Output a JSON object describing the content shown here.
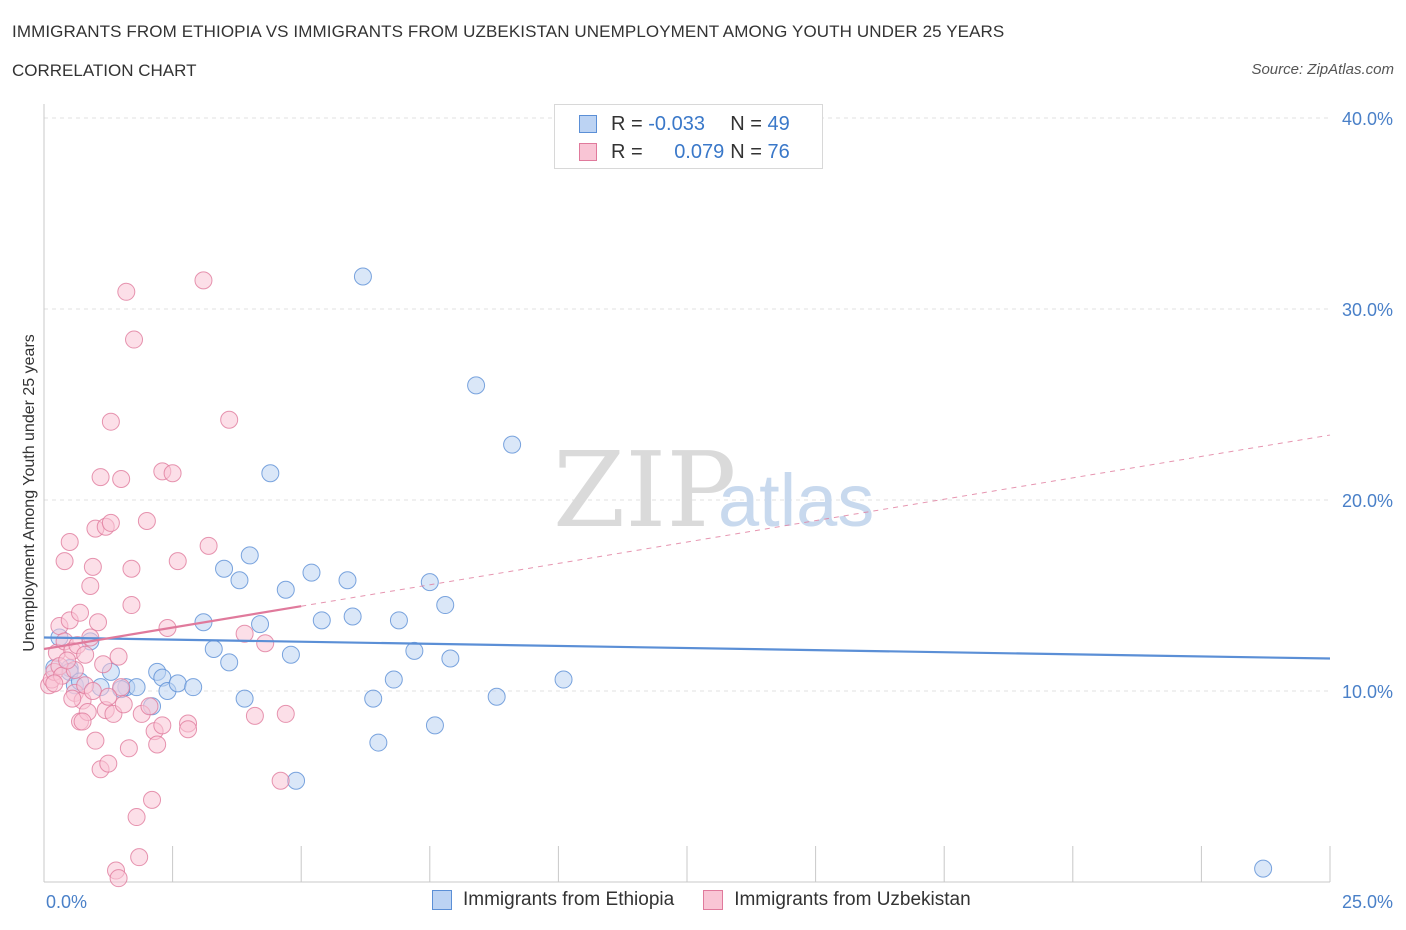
{
  "header": {
    "title": "IMMIGRANTS FROM ETHIOPIA VS IMMIGRANTS FROM UZBEKISTAN UNEMPLOYMENT AMONG YOUTH UNDER 25 YEARS",
    "subtitle": "CORRELATION CHART",
    "source": "Source: ZipAtlas.com"
  },
  "watermark": {
    "zip": "ZIP",
    "atlas": "atlas"
  },
  "legend": {
    "rows": [
      {
        "r_label": "R =",
        "r_value": "-0.033",
        "n_label": "N =",
        "n_value": "49",
        "color": "#5b8fd6",
        "fill": "#bcd3f3"
      },
      {
        "r_label": "R =",
        "r_value": "0.079",
        "n_label": "N =",
        "n_value": "76",
        "color": "#e07a9c",
        "fill": "#f9c5d5"
      }
    ]
  },
  "bottom_legend": [
    {
      "label": "Immigrants from Ethiopia",
      "color": "#5b8fd6",
      "fill": "#bcd3f3"
    },
    {
      "label": "Immigrants from Uzbekistan",
      "color": "#e07a9c",
      "fill": "#f9c5d5"
    }
  ],
  "chart_data": {
    "type": "scatter",
    "title": "IMMIGRANTS FROM ETHIOPIA VS IMMIGRANTS FROM UZBEKISTAN UNEMPLOYMENT AMONG YOUTH UNDER 25 YEARS",
    "xlabel": "",
    "ylabel": "Unemployment Among Youth under 25 years",
    "xlim": [
      0,
      25
    ],
    "ylim": [
      0,
      40
    ],
    "x_tick_labels": {
      "left": "0.0%",
      "right": "25.0%"
    },
    "y_ticks": [
      10,
      20,
      30,
      40
    ],
    "y_tick_labels": [
      "10.0%",
      "20.0%",
      "30.0%",
      "40.0%"
    ],
    "grid": true,
    "series": [
      {
        "name": "Immigrants from Ethiopia",
        "color": "#5b8fd6",
        "fill": "#bcd3f3",
        "trend": {
          "x1": 0.0,
          "y1": 12.8,
          "x2": 25.0,
          "y2": 11.7,
          "solid_to_x": 25.0
        },
        "points": [
          [
            0.3,
            12.8
          ],
          [
            0.5,
            11.2
          ],
          [
            0.5,
            11.0
          ],
          [
            0.6,
            10.3
          ],
          [
            0.7,
            10.5
          ],
          [
            0.9,
            12.6
          ],
          [
            1.1,
            10.2
          ],
          [
            1.3,
            11.0
          ],
          [
            1.6,
            10.2
          ],
          [
            1.8,
            10.2
          ],
          [
            2.1,
            9.2
          ],
          [
            2.2,
            11.0
          ],
          [
            2.3,
            10.7
          ],
          [
            2.4,
            10.0
          ],
          [
            2.6,
            10.4
          ],
          [
            2.9,
            10.2
          ],
          [
            3.1,
            13.6
          ],
          [
            3.3,
            12.2
          ],
          [
            3.5,
            16.4
          ],
          [
            3.6,
            11.5
          ],
          [
            3.8,
            15.8
          ],
          [
            3.9,
            9.6
          ],
          [
            4.0,
            17.1
          ],
          [
            4.2,
            13.5
          ],
          [
            4.4,
            21.4
          ],
          [
            4.7,
            15.3
          ],
          [
            4.8,
            11.9
          ],
          [
            4.9,
            5.3
          ],
          [
            5.2,
            16.2
          ],
          [
            5.4,
            13.7
          ],
          [
            5.9,
            15.8
          ],
          [
            6.0,
            13.9
          ],
          [
            6.2,
            31.7
          ],
          [
            6.4,
            9.6
          ],
          [
            6.5,
            7.3
          ],
          [
            6.8,
            10.6
          ],
          [
            6.9,
            13.7
          ],
          [
            7.2,
            12.1
          ],
          [
            7.5,
            15.7
          ],
          [
            7.6,
            8.2
          ],
          [
            7.8,
            14.5
          ],
          [
            7.9,
            11.7
          ],
          [
            8.4,
            26.0
          ],
          [
            8.8,
            9.7
          ],
          [
            9.1,
            22.9
          ],
          [
            10.1,
            10.6
          ],
          [
            23.7,
            0.7
          ],
          [
            0.2,
            11.2
          ],
          [
            1.5,
            10.1
          ]
        ]
      },
      {
        "name": "Immigrants from Uzbekistan",
        "color": "#e07a9c",
        "fill": "#f9c5d5",
        "trend": {
          "x1": 0.0,
          "y1": 12.2,
          "x2": 25.0,
          "y2": 23.4,
          "solid_to_x": 5.0
        },
        "points": [
          [
            0.1,
            10.3
          ],
          [
            0.15,
            10.6
          ],
          [
            0.2,
            11.0
          ],
          [
            0.25,
            12.0
          ],
          [
            0.3,
            11.3
          ],
          [
            0.3,
            13.4
          ],
          [
            0.35,
            10.8
          ],
          [
            0.4,
            12.6
          ],
          [
            0.4,
            16.8
          ],
          [
            0.5,
            17.8
          ],
          [
            0.5,
            13.7
          ],
          [
            0.55,
            12.1
          ],
          [
            0.6,
            11.1
          ],
          [
            0.6,
            9.9
          ],
          [
            0.65,
            12.4
          ],
          [
            0.7,
            8.4
          ],
          [
            0.7,
            14.1
          ],
          [
            0.75,
            9.5
          ],
          [
            0.8,
            10.3
          ],
          [
            0.8,
            11.9
          ],
          [
            0.85,
            8.9
          ],
          [
            0.9,
            12.8
          ],
          [
            0.9,
            15.5
          ],
          [
            0.95,
            16.5
          ],
          [
            1.0,
            18.5
          ],
          [
            1.0,
            7.4
          ],
          [
            1.05,
            13.6
          ],
          [
            1.1,
            21.2
          ],
          [
            1.1,
            5.9
          ],
          [
            1.15,
            11.4
          ],
          [
            1.2,
            18.6
          ],
          [
            1.2,
            9.0
          ],
          [
            1.25,
            6.2
          ],
          [
            1.3,
            18.8
          ],
          [
            1.3,
            24.1
          ],
          [
            1.35,
            8.8
          ],
          [
            1.4,
            0.6
          ],
          [
            1.45,
            0.2
          ],
          [
            1.5,
            21.1
          ],
          [
            1.5,
            10.2
          ],
          [
            1.55,
            9.3
          ],
          [
            1.6,
            30.9
          ],
          [
            1.65,
            7.0
          ],
          [
            1.7,
            16.4
          ],
          [
            1.7,
            14.5
          ],
          [
            1.75,
            28.4
          ],
          [
            1.8,
            3.4
          ],
          [
            1.85,
            1.3
          ],
          [
            1.9,
            8.8
          ],
          [
            2.0,
            18.9
          ],
          [
            2.1,
            4.3
          ],
          [
            2.15,
            7.9
          ],
          [
            2.2,
            7.2
          ],
          [
            2.3,
            8.2
          ],
          [
            2.3,
            21.5
          ],
          [
            2.4,
            13.3
          ],
          [
            2.5,
            21.4
          ],
          [
            2.6,
            16.8
          ],
          [
            2.8,
            8.3
          ],
          [
            2.8,
            8.0
          ],
          [
            3.1,
            31.5
          ],
          [
            3.2,
            17.6
          ],
          [
            3.6,
            24.2
          ],
          [
            3.9,
            13.0
          ],
          [
            4.1,
            8.7
          ],
          [
            4.3,
            12.5
          ],
          [
            4.6,
            5.3
          ],
          [
            4.7,
            8.8
          ],
          [
            0.2,
            10.4
          ],
          [
            0.45,
            11.6
          ],
          [
            0.55,
            9.6
          ],
          [
            0.75,
            8.4
          ],
          [
            0.95,
            10.0
          ],
          [
            1.25,
            9.7
          ],
          [
            1.45,
            11.8
          ],
          [
            2.05,
            9.2
          ]
        ]
      }
    ]
  }
}
